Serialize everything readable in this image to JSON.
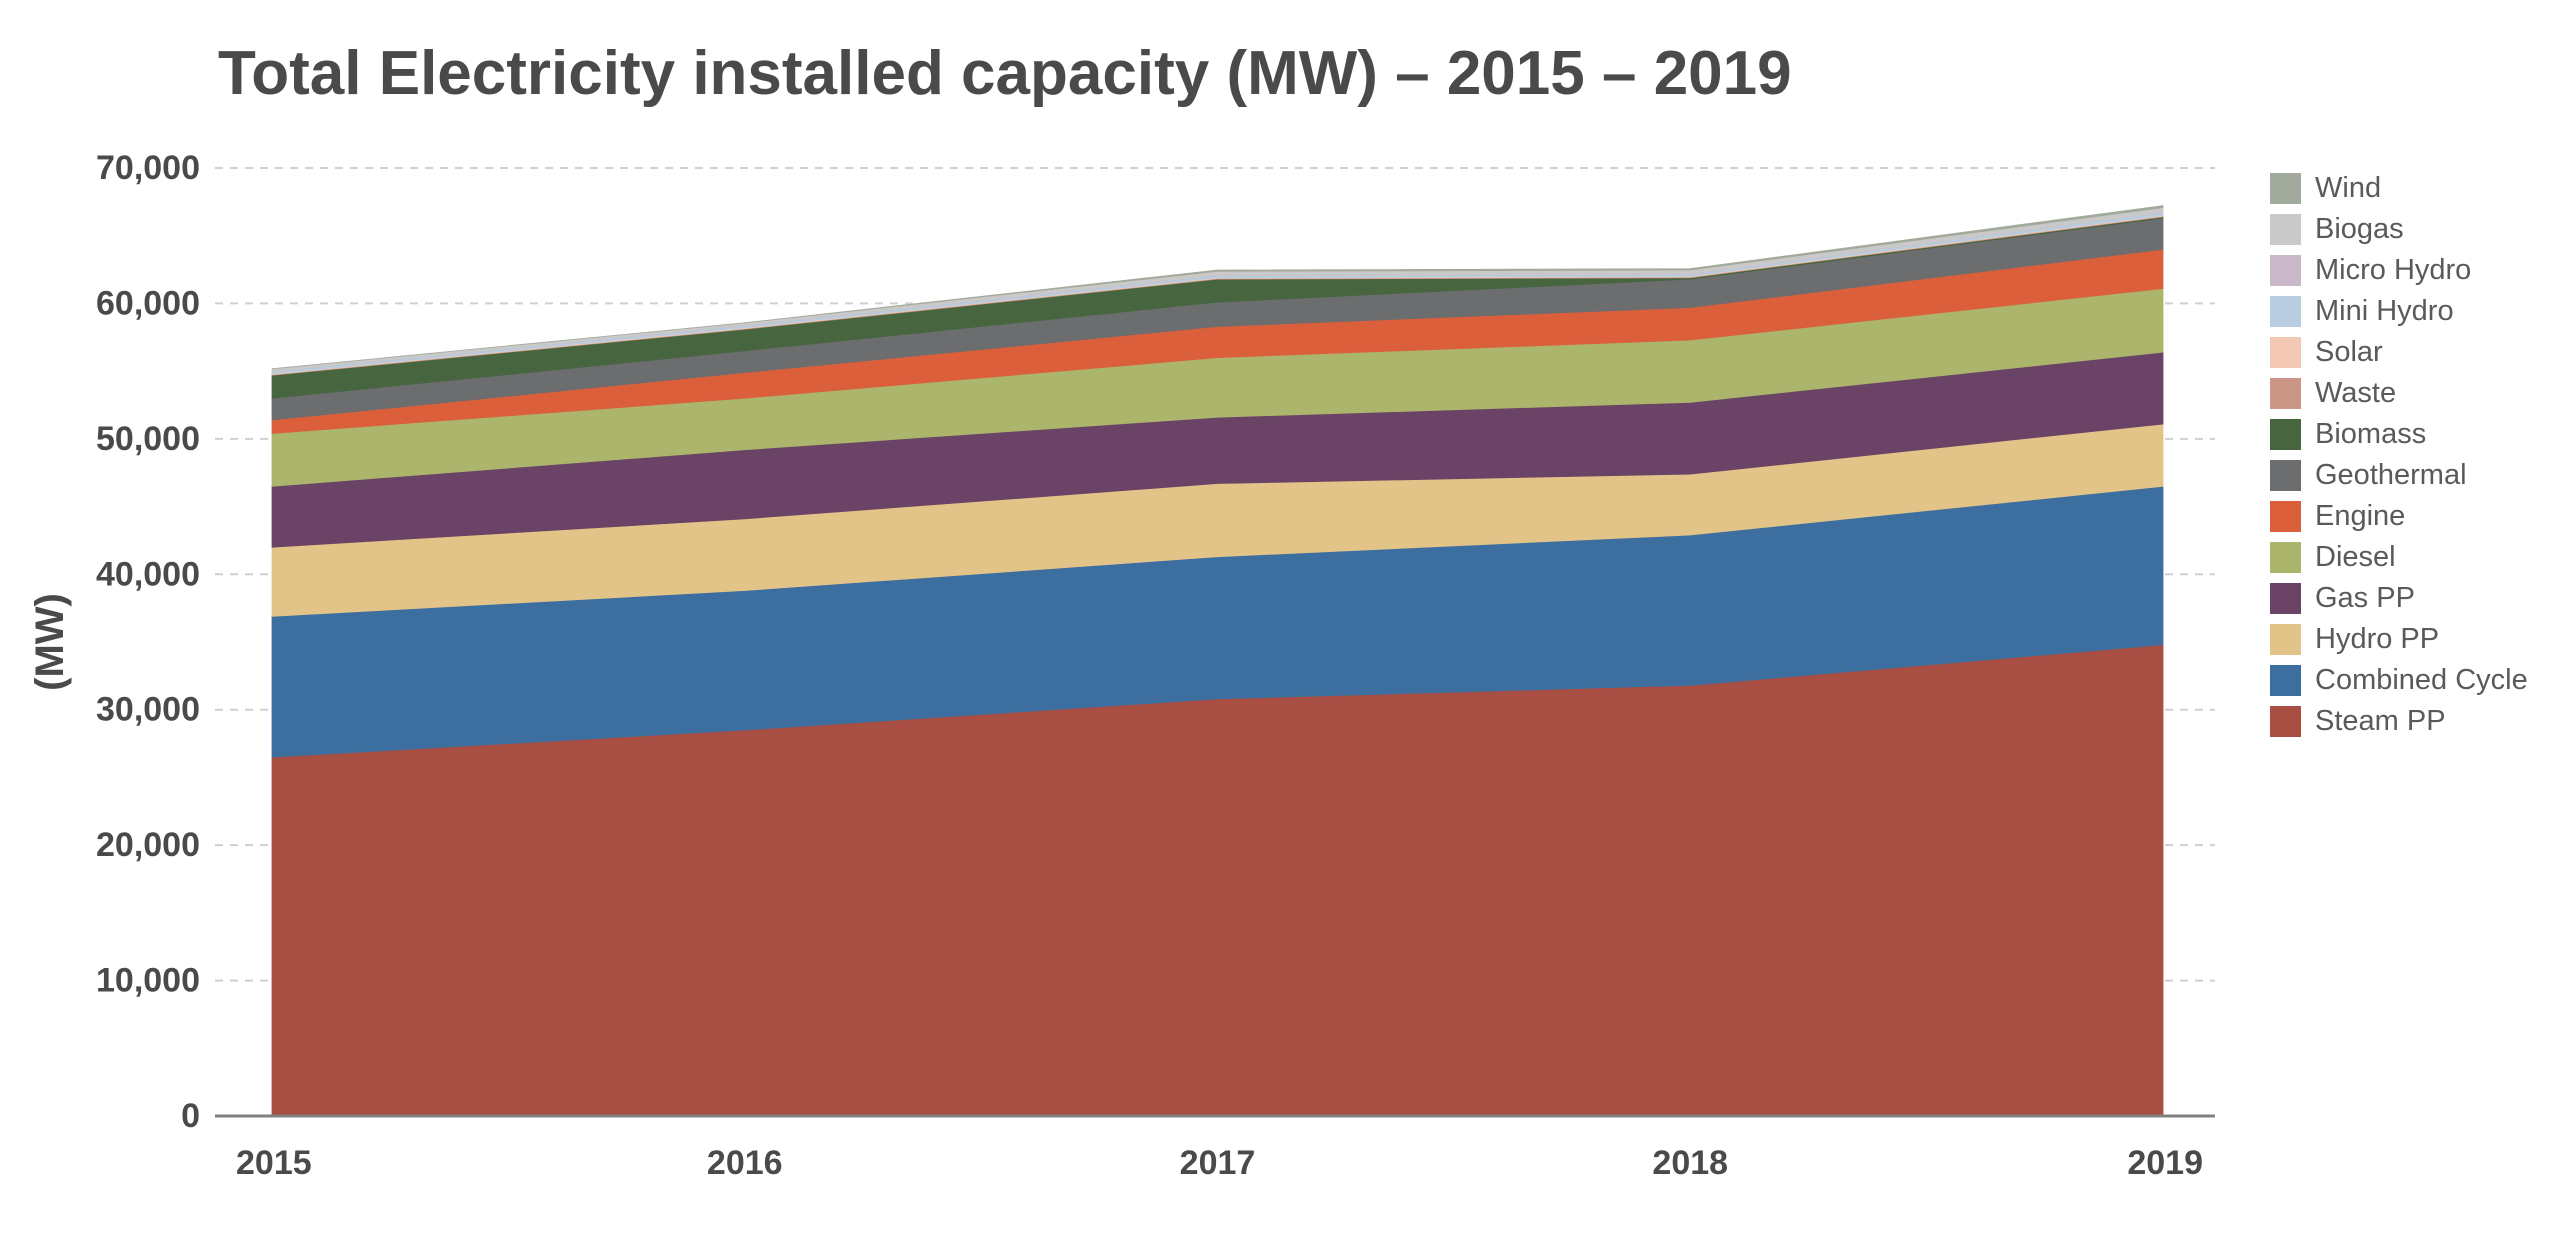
{
  "chart_data": {
    "type": "area",
    "stacked": true,
    "title": "Total Electricity installed capacity (MW) – 2015 – 2019",
    "xlabel": "",
    "ylabel": "(MW)",
    "x": [
      "2015",
      "2016",
      "2017",
      "2018",
      "2019"
    ],
    "ylim": [
      0,
      70000
    ],
    "yticks": [
      0,
      10000,
      20000,
      30000,
      40000,
      50000,
      60000,
      70000
    ],
    "ytick_labels": [
      "0",
      "10,000",
      "20,000",
      "30,000",
      "40,000",
      "50,000",
      "60,000",
      "70,000"
    ],
    "grid": "horizontal dashed",
    "legend_position": "right",
    "series": [
      {
        "name": "Steam PP",
        "color": "#a84e42",
        "values": [
          26500,
          28500,
          30800,
          31800,
          34800
        ]
      },
      {
        "name": "Combined Cycle",
        "color": "#3c6e9f",
        "values": [
          10400,
          10300,
          10500,
          11100,
          11700
        ]
      },
      {
        "name": "Hydro PP",
        "color": "#e2c488",
        "values": [
          5100,
          5300,
          5400,
          4500,
          4600
        ]
      },
      {
        "name": "Gas PP",
        "color": "#6b4366",
        "values": [
          4500,
          5100,
          4900,
          5300,
          5300
        ]
      },
      {
        "name": "Diesel",
        "color": "#abb56b",
        "values": [
          3900,
          3800,
          4400,
          4600,
          4700
        ]
      },
      {
        "name": "Engine",
        "color": "#dc5f3c",
        "values": [
          1000,
          1900,
          2300,
          2400,
          2900
        ]
      },
      {
        "name": "Geothermal",
        "color": "#6b6d6e",
        "values": [
          1600,
          1600,
          1800,
          2100,
          2300
        ]
      },
      {
        "name": "Biomass",
        "color": "#476640",
        "values": [
          1700,
          1600,
          1700,
          100,
          100
        ]
      },
      {
        "name": "Waste",
        "color": "#cc9686",
        "values": [
          50,
          50,
          50,
          50,
          50
        ]
      },
      {
        "name": "Solar",
        "color": "#f2c8b3",
        "values": [
          50,
          50,
          50,
          50,
          50
        ]
      },
      {
        "name": "Mini Hydro",
        "color": "#b8cde0",
        "values": [
          150,
          150,
          150,
          150,
          200
        ]
      },
      {
        "name": "Micro Hydro",
        "color": "#c9b8c9",
        "values": [
          20,
          20,
          20,
          20,
          20
        ]
      },
      {
        "name": "Biogas",
        "color": "#c9c9c9",
        "values": [
          200,
          200,
          300,
          300,
          350
        ]
      },
      {
        "name": "Wind",
        "color": "#a2ab9b",
        "values": [
          0,
          0,
          100,
          100,
          150
        ]
      }
    ],
    "legend_order": [
      "Wind",
      "Biogas",
      "Micro Hydro",
      "Mini Hydro",
      "Solar",
      "Waste",
      "Biomass",
      "Geothermal",
      "Engine",
      "Diesel",
      "Gas PP",
      "Hydro PP",
      "Combined Cycle",
      "Steam PP"
    ],
    "grid_color": "#d0d0d0",
    "axis_color": "#808080",
    "text_color": "#4a4a4a"
  }
}
